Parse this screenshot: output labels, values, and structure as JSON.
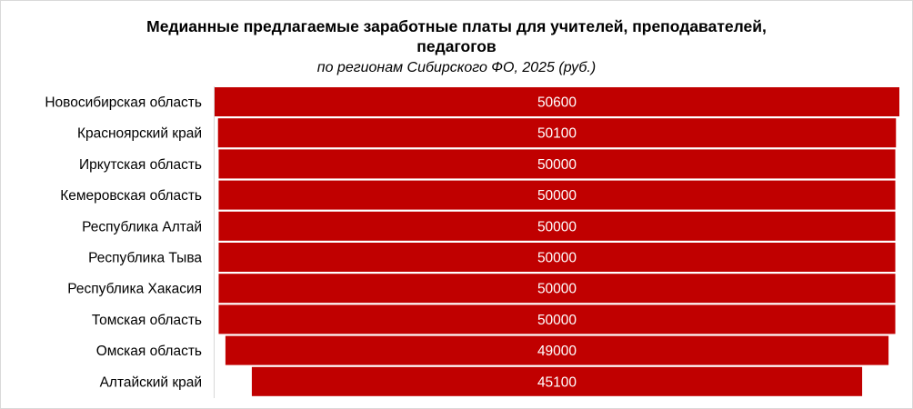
{
  "chart_data": {
    "type": "bar",
    "orientation": "horizontal",
    "layout": "centered-funnel",
    "title_line1": "Медианные  предлагаемые  заработные  платы   для учителей,  преподавателей,",
    "title_line2": "педагогов",
    "subtitle": "по  регионам Сибирского ФО, 2025 (руб.)",
    "categories": [
      "Новосибирская область",
      "Красноярский край",
      "Иркутская область",
      "Кемеровская область",
      "Республика Алтай",
      "Республика Тыва",
      "Республика Хакасия",
      "Томская область",
      "Омская область",
      "Алтайский край"
    ],
    "values": [
      50600,
      50100,
      50000,
      50000,
      50000,
      50000,
      50000,
      50000,
      49000,
      45100
    ],
    "data_labels": [
      "50600",
      "50100",
      "50000",
      "50000",
      "50000",
      "50000",
      "50000",
      "50000",
      "49000",
      "45100"
    ],
    "bar_color": "#c00000",
    "grid": false,
    "legend": "none"
  }
}
